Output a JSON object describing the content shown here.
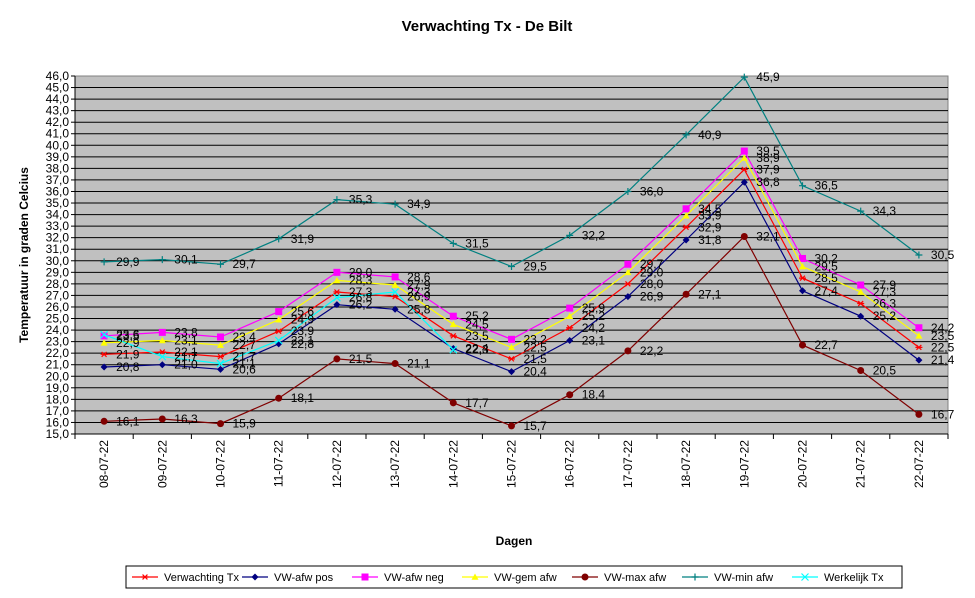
{
  "chart_data": {
    "type": "line",
    "title": "Verwachting Tx - De Bilt",
    "xlabel": "Dagen",
    "ylabel": "Temperatuur in graden Celcius",
    "ylim": [
      15.0,
      46.0
    ],
    "ystep": 1.0,
    "grid": true,
    "legend_position": "bottom",
    "plot_background": "#c0c0c0",
    "categories": [
      "08-07-22",
      "09-07-22",
      "10-07-22",
      "11-07-22",
      "12-07-22",
      "13-07-22",
      "14-07-22",
      "15-07-22",
      "16-07-22",
      "17-07-22",
      "18-07-22",
      "19-07-22",
      "20-07-22",
      "21-07-22",
      "22-07-22"
    ],
    "series": [
      {
        "name": "Verwachting Tx",
        "color": "#ff0000",
        "marker": "asterisk",
        "values": [
          21.9,
          22.1,
          21.7,
          23.9,
          27.3,
          26.9,
          23.5,
          21.5,
          24.2,
          28.0,
          32.9,
          37.9,
          28.5,
          26.3,
          22.5
        ]
      },
      {
        "name": "VW-afw pos",
        "color": "#000080",
        "marker": "diamond",
        "values": [
          20.8,
          21.0,
          20.6,
          22.8,
          26.2,
          25.8,
          22.4,
          20.4,
          23.1,
          26.9,
          31.8,
          36.8,
          27.4,
          25.2,
          21.4
        ]
      },
      {
        "name": "VW-afw neg",
        "color": "#ff00ff",
        "marker": "square",
        "values": [
          23.5,
          23.8,
          23.4,
          25.6,
          29.0,
          28.6,
          25.2,
          23.2,
          25.9,
          29.7,
          34.5,
          39.5,
          30.2,
          27.9,
          24.2
        ]
      },
      {
        "name": "VW-gem afw",
        "color": "#ffff00",
        "marker": "triangle",
        "values": [
          22.9,
          23.1,
          22.7,
          24.9,
          28.3,
          27.9,
          24.5,
          22.5,
          25.2,
          29.0,
          33.9,
          38.9,
          29.5,
          27.3,
          23.5
        ]
      },
      {
        "name": "VW-max afw",
        "color": "#800000",
        "marker": "circle",
        "values": [
          16.1,
          16.3,
          15.9,
          18.1,
          21.5,
          21.1,
          17.7,
          15.7,
          18.4,
          22.2,
          27.1,
          32.1,
          22.7,
          20.5,
          16.7
        ]
      },
      {
        "name": "VW-min afw",
        "color": "#008080",
        "marker": "plus",
        "values": [
          29.9,
          30.1,
          29.7,
          31.9,
          35.3,
          34.9,
          31.5,
          29.5,
          32.2,
          36.0,
          40.9,
          45.9,
          36.5,
          34.3,
          30.5
        ]
      },
      {
        "name": "Werkelijk Tx",
        "color": "#00ffff",
        "marker": "x",
        "values": [
          23.6,
          21.7,
          21.1,
          23.1,
          26.8,
          27.3,
          22.3,
          null,
          null,
          null,
          null,
          null,
          null,
          null,
          null
        ]
      }
    ]
  }
}
